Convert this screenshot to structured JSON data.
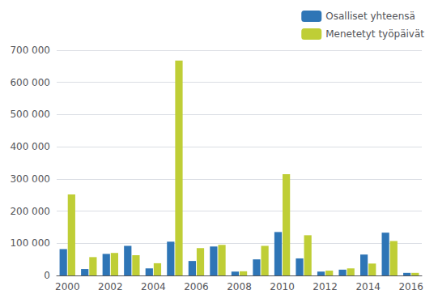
{
  "chart_data": {
    "type": "bar",
    "categories": [
      "2000",
      null,
      "2002",
      null,
      "2004",
      null,
      "2006",
      null,
      "2008",
      null,
      "2010",
      null,
      "2012",
      null,
      "2014",
      null,
      "2016"
    ],
    "series": [
      {
        "name": "Osalliset yhteensä",
        "color": "#2E75B6",
        "values": [
          82000,
          20000,
          67000,
          92000,
          22000,
          105000,
          45000,
          90000,
          12000,
          50000,
          135000,
          53000,
          12000,
          18000,
          65000,
          133000,
          8000
        ]
      },
      {
        "name": "Menetetyt työpäivät",
        "color": "#BFCE36",
        "values": [
          252000,
          57000,
          70000,
          63000,
          38000,
          668000,
          85000,
          95000,
          13000,
          92000,
          315000,
          125000,
          15000,
          22000,
          37000,
          107000,
          8000
        ]
      }
    ],
    "ylim": [
      0,
      700000
    ],
    "yticks": [
      0,
      {
        "value": 100000,
        "label": "100 000"
      },
      {
        "value": 200000,
        "label": "200 000"
      },
      {
        "value": 300000,
        "label": "300 000"
      },
      {
        "value": 400000,
        "label": "400 000"
      },
      {
        "value": 500000,
        "label": "500 000"
      },
      {
        "value": 600000,
        "label": "600 000"
      },
      {
        "value": 700000,
        "label": "700 000"
      }
    ],
    "grid": true,
    "legend": "upper right"
  }
}
